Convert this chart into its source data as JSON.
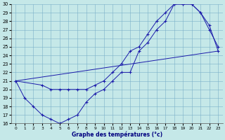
{
  "xlabel": "Graphe des températures (°c)",
  "xlim": [
    -0.5,
    23.5
  ],
  "ylim": [
    16,
    30
  ],
  "xticks": [
    0,
    1,
    2,
    3,
    4,
    5,
    6,
    7,
    8,
    9,
    10,
    11,
    12,
    13,
    14,
    15,
    16,
    17,
    18,
    19,
    20,
    21,
    22,
    23
  ],
  "yticks": [
    16,
    17,
    18,
    19,
    20,
    21,
    22,
    23,
    24,
    25,
    26,
    27,
    28,
    29,
    30
  ],
  "bg_color": "#c5e8e8",
  "line_color": "#1a1aaa",
  "line1_x": [
    0,
    1,
    2,
    3,
    4,
    5,
    6,
    7,
    8,
    9,
    10,
    11,
    12,
    13,
    14,
    15,
    16,
    17,
    18,
    19,
    20,
    21,
    22,
    23
  ],
  "line1_y": [
    21,
    19,
    18,
    17,
    16.5,
    16,
    16.5,
    17,
    18.5,
    19.5,
    20,
    21,
    22,
    22,
    24.5,
    25.5,
    27,
    28,
    30,
    30,
    30,
    29,
    27,
    25
  ],
  "line2_x": [
    0,
    3,
    4,
    5,
    6,
    7,
    8,
    9,
    10,
    11,
    12,
    13,
    14,
    15,
    16,
    17,
    18,
    19,
    20,
    21,
    22,
    23
  ],
  "line2_y": [
    21,
    20.5,
    20,
    20,
    20,
    20,
    20,
    20.5,
    21,
    22,
    23,
    24.5,
    25,
    26.5,
    28,
    29,
    30,
    30,
    30,
    29,
    27.5,
    24.5
  ],
  "line3_x": [
    0,
    23
  ],
  "line3_y": [
    21,
    24.5
  ]
}
